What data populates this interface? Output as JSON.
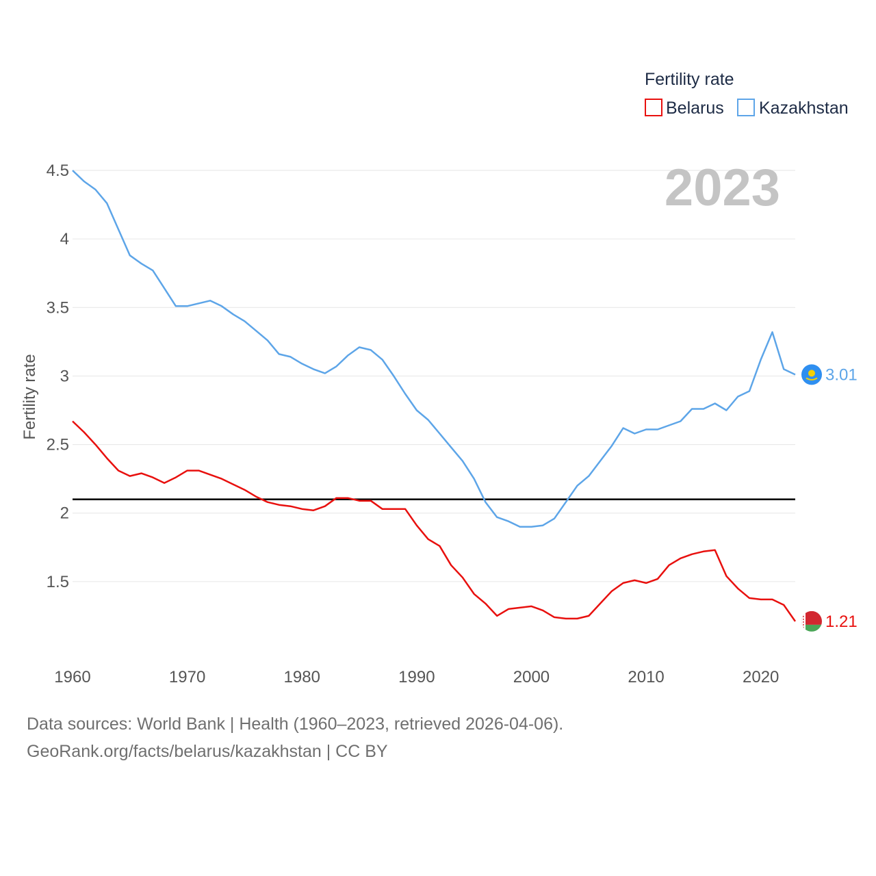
{
  "chart_data": {
    "type": "line",
    "legend_title": "Fertility rate",
    "ylabel": "Fertility rate",
    "year_label": "2023",
    "x": [
      1960,
      1961,
      1962,
      1963,
      1964,
      1965,
      1966,
      1967,
      1968,
      1969,
      1970,
      1971,
      1972,
      1973,
      1974,
      1975,
      1976,
      1977,
      1978,
      1979,
      1980,
      1981,
      1982,
      1983,
      1984,
      1985,
      1986,
      1987,
      1988,
      1989,
      1990,
      1991,
      1992,
      1993,
      1994,
      1995,
      1996,
      1997,
      1998,
      1999,
      2000,
      2001,
      2002,
      2003,
      2004,
      2005,
      2006,
      2007,
      2008,
      2009,
      2010,
      2011,
      2012,
      2013,
      2014,
      2015,
      2016,
      2017,
      2018,
      2019,
      2020,
      2021,
      2022,
      2023
    ],
    "xlim": [
      1960,
      2023
    ],
    "ylim": [
      1.0,
      4.5
    ],
    "x_ticks": [
      "1960",
      "1970",
      "1980",
      "1990",
      "2000",
      "2010",
      "2020"
    ],
    "y_ticks": [
      "1.5",
      "2",
      "2.5",
      "3",
      "3.5",
      "4",
      "4.5"
    ],
    "reference_line": 2.1,
    "series": [
      {
        "name": "Belarus",
        "color": "#e8100e",
        "end_label": "1.21",
        "values": [
          2.67,
          2.59,
          2.5,
          2.4,
          2.31,
          2.27,
          2.29,
          2.26,
          2.22,
          2.26,
          2.31,
          2.31,
          2.28,
          2.25,
          2.21,
          2.17,
          2.12,
          2.08,
          2.06,
          2.05,
          2.03,
          2.02,
          2.05,
          2.11,
          2.11,
          2.09,
          2.09,
          2.03,
          2.03,
          2.03,
          1.91,
          1.81,
          1.76,
          1.62,
          1.53,
          1.41,
          1.34,
          1.25,
          1.3,
          1.31,
          1.32,
          1.29,
          1.24,
          1.23,
          1.23,
          1.25,
          1.34,
          1.43,
          1.49,
          1.51,
          1.49,
          1.52,
          1.62,
          1.67,
          1.7,
          1.72,
          1.73,
          1.54,
          1.45,
          1.38,
          1.37,
          1.37,
          1.33,
          1.21
        ]
      },
      {
        "name": "Kazakhstan",
        "color": "#5da5e8",
        "end_label": "3.01",
        "values": [
          4.5,
          4.42,
          4.36,
          4.26,
          4.07,
          3.88,
          3.82,
          3.77,
          3.64,
          3.51,
          3.51,
          3.53,
          3.55,
          3.51,
          3.45,
          3.4,
          3.33,
          3.26,
          3.16,
          3.14,
          3.09,
          3.05,
          3.02,
          3.07,
          3.15,
          3.21,
          3.19,
          3.12,
          3.0,
          2.87,
          2.75,
          2.68,
          2.58,
          2.48,
          2.38,
          2.25,
          2.08,
          1.97,
          1.94,
          1.9,
          1.9,
          1.91,
          1.96,
          2.08,
          2.2,
          2.27,
          2.38,
          2.49,
          2.62,
          2.58,
          2.61,
          2.61,
          2.64,
          2.67,
          2.76,
          2.76,
          2.8,
          2.75,
          2.85,
          2.89,
          3.12,
          3.32,
          3.05,
          3.01
        ]
      }
    ]
  },
  "footer": {
    "line1": "Data sources: World Bank | Health (1960–2023, retrieved 2026-04-06).",
    "line2": "GeoRank.org/facts/belarus/kazakhstan | CC BY"
  }
}
